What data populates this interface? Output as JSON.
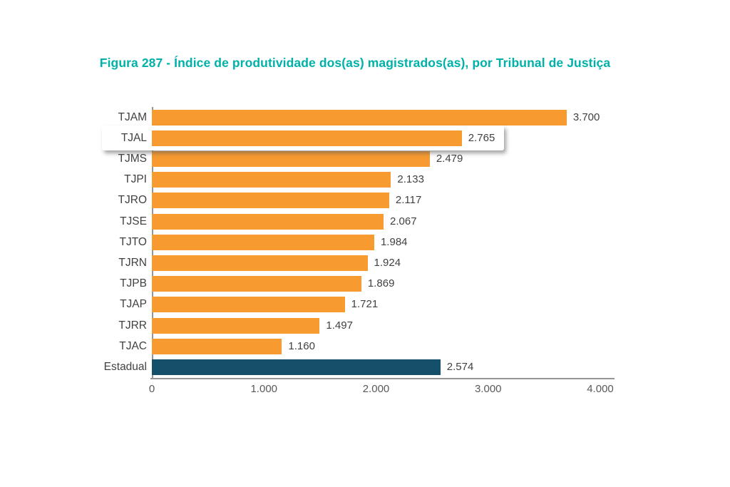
{
  "title": "Figura 287 - Índice de produtividade dos(as) magistrados(as), por Tribunal de Justiça",
  "colors": {
    "title": "#00b1a9",
    "bar_default": "#f79a30",
    "bar_estadual": "#15506b",
    "label_text": "#414042",
    "tick_text": "#58595b",
    "axis_line": "#94969a",
    "highlight_box_bg": "#ffffff"
  },
  "chart_data": {
    "type": "bar",
    "orientation": "horizontal",
    "title": "Figura 287 - Índice de produtividade dos(as) magistrados(as), por Tribunal de Justiça",
    "xlabel": "",
    "ylabel": "",
    "xlim": [
      0,
      4000
    ],
    "xticks": [
      {
        "value": 0,
        "label": "0"
      },
      {
        "value": 1000,
        "label": "1.000"
      },
      {
        "value": 2000,
        "label": "2.000"
      },
      {
        "value": 3000,
        "label": "3.000"
      },
      {
        "value": 4000,
        "label": "4.000"
      }
    ],
    "grid": false,
    "legend": "none",
    "highlighted_category": "TJAL",
    "rows": [
      {
        "category": "TJAM",
        "value": 3700,
        "value_label": "3.700",
        "color": "#f79a30"
      },
      {
        "category": "TJAL",
        "value": 2765,
        "value_label": "2.765",
        "color": "#f79a30"
      },
      {
        "category": "TJMS",
        "value": 2479,
        "value_label": "2.479",
        "color": "#f79a30"
      },
      {
        "category": "TJPI",
        "value": 2133,
        "value_label": "2.133",
        "color": "#f79a30"
      },
      {
        "category": "TJRO",
        "value": 2117,
        "value_label": "2.117",
        "color": "#f79a30"
      },
      {
        "category": "TJSE",
        "value": 2067,
        "value_label": "2.067",
        "color": "#f79a30"
      },
      {
        "category": "TJTO",
        "value": 1984,
        "value_label": "1.984",
        "color": "#f79a30"
      },
      {
        "category": "TJRN",
        "value": 1924,
        "value_label": "1.924",
        "color": "#f79a30"
      },
      {
        "category": "TJPB",
        "value": 1869,
        "value_label": "1.869",
        "color": "#f79a30"
      },
      {
        "category": "TJAP",
        "value": 1721,
        "value_label": "1.721",
        "color": "#f79a30"
      },
      {
        "category": "TJRR",
        "value": 1497,
        "value_label": "1.497",
        "color": "#f79a30"
      },
      {
        "category": "TJAC",
        "value": 1160,
        "value_label": "1.160",
        "color": "#f79a30"
      },
      {
        "category": "Estadual",
        "value": 2574,
        "value_label": "2.574",
        "color": "#15506b"
      }
    ]
  }
}
